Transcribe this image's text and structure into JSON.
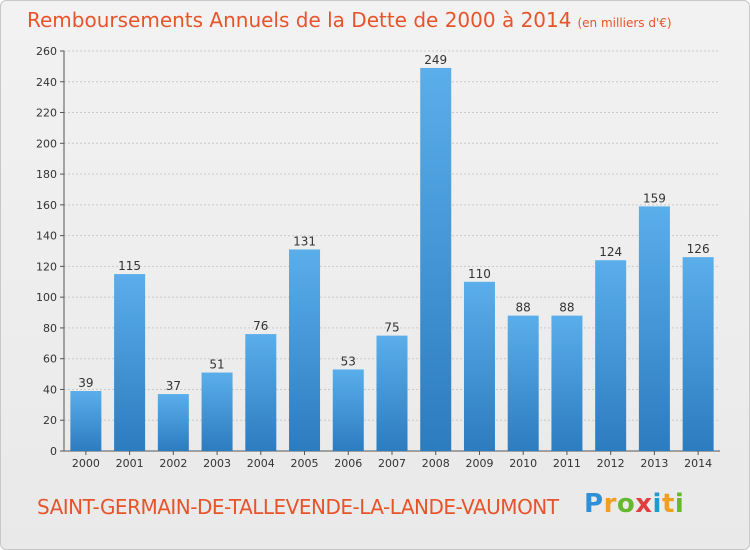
{
  "header": {
    "title": "Remboursements Annuels de la Dette de 2000 à 2014",
    "unit": "(en milliers d'€)"
  },
  "footer": {
    "commune": "SAINT-GERMAIN-DE-TALLEVENDE-LA-LANDE-VAUMONT",
    "logo": "Proxiti"
  },
  "colors": {
    "bar": "#4a9fe0",
    "bar_dark": "#2e7fc4",
    "title": "#e8542a",
    "grid": "#c9c9c9"
  },
  "chart_data": {
    "type": "bar",
    "title": "Remboursements Annuels de la Dette de 2000 à 2014",
    "subtitle": "(en milliers d'€)",
    "xlabel": "",
    "ylabel": "",
    "categories": [
      "2000",
      "2001",
      "2002",
      "2003",
      "2004",
      "2005",
      "2006",
      "2007",
      "2008",
      "2009",
      "2010",
      "2011",
      "2012",
      "2013",
      "2014"
    ],
    "values": [
      39,
      115,
      37,
      51,
      76,
      131,
      53,
      75,
      249,
      110,
      88,
      88,
      124,
      159,
      126
    ],
    "ylim": [
      0,
      260
    ],
    "yticks": [
      0,
      20,
      40,
      60,
      80,
      100,
      120,
      140,
      160,
      180,
      200,
      220,
      240,
      260
    ],
    "grid": true,
    "legend": "none"
  }
}
